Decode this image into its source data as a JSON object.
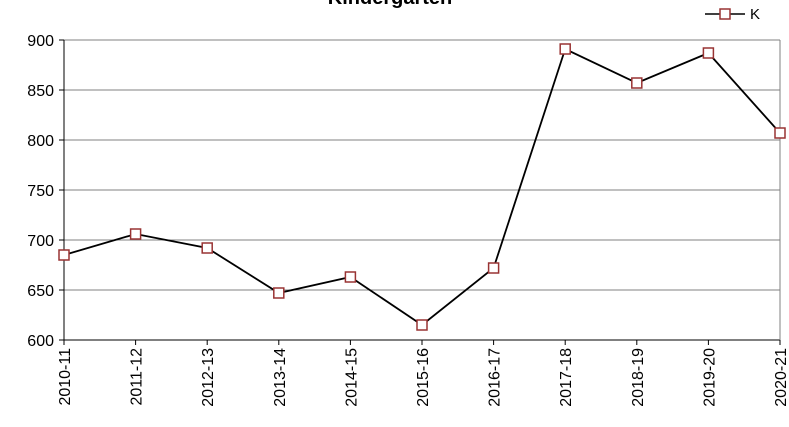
{
  "chart_data": {
    "type": "line",
    "title": "Kindergarten",
    "xlabel": "",
    "ylabel": "",
    "categories": [
      "2010-11",
      "2011-12",
      "2012-13",
      "2013-14",
      "2014-15",
      "2015-16",
      "2016-17",
      "2017-18",
      "2018-19",
      "2019-20",
      "2020-21"
    ],
    "series": [
      {
        "name": "K",
        "values": [
          685,
          706,
          692,
          647,
          663,
          615,
          672,
          891,
          857,
          887,
          807
        ]
      }
    ],
    "ylim": [
      600,
      900
    ],
    "yticks": [
      "600",
      "650",
      "700",
      "750",
      "800",
      "850",
      "900"
    ],
    "grid": true,
    "legend_position": "top-right",
    "colors": {
      "line": "#000000",
      "marker_edge": "#993333",
      "marker_fill": "#ffffff",
      "grid": "#808080"
    }
  }
}
